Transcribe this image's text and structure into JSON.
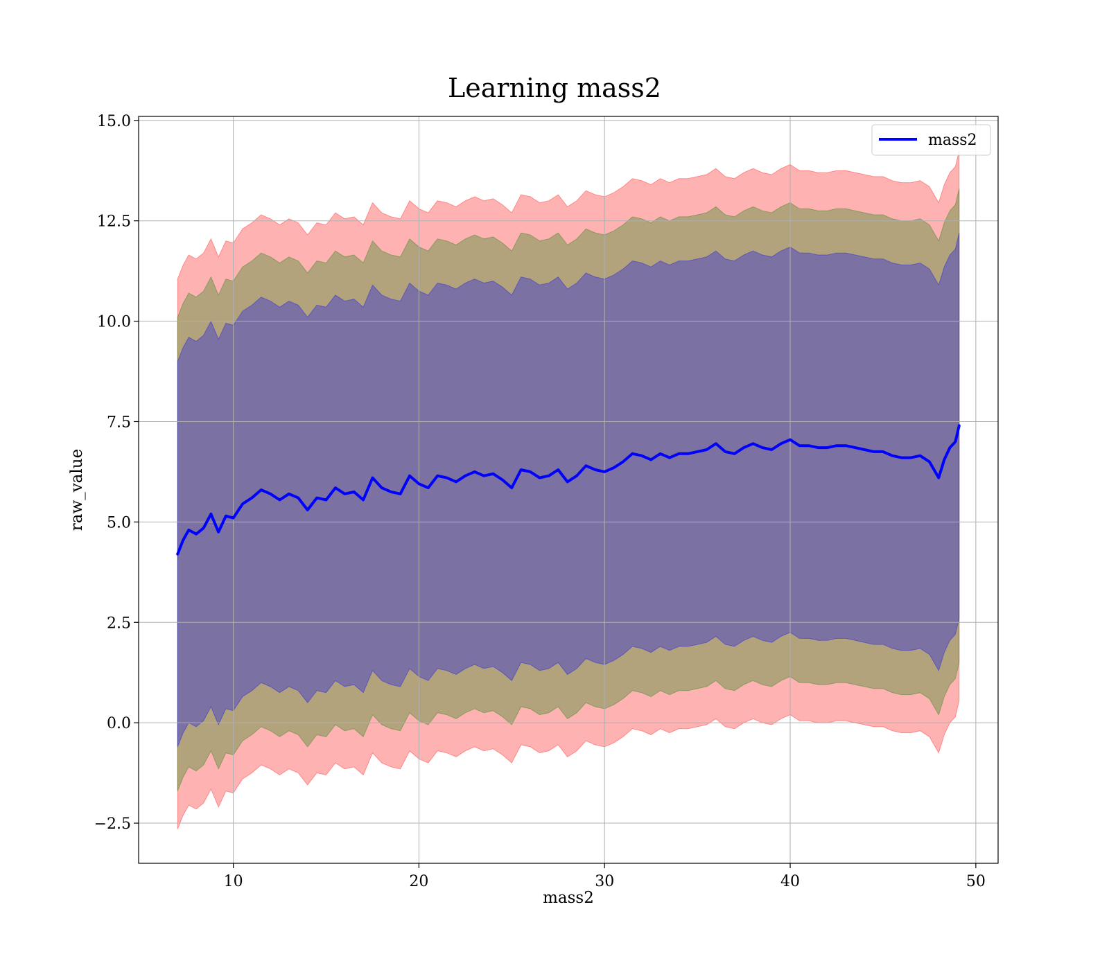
{
  "chart_data": {
    "type": "area",
    "title": "Learning mass2",
    "xlabel": "mass2",
    "ylabel": "raw_value",
    "xlim": [
      4.9,
      51.2
    ],
    "ylim": [
      -3.5,
      15.1
    ],
    "xticks": [
      10,
      20,
      30,
      40,
      50
    ],
    "yticks": [
      -2.5,
      0.0,
      2.5,
      5.0,
      7.5,
      10.0,
      12.5,
      15.0
    ],
    "ytick_labels": [
      "−2.5",
      "0.0",
      "2.5",
      "5.0",
      "7.5",
      "10.0",
      "12.5",
      "15.0"
    ],
    "grid": true,
    "legend": {
      "position": "top-right",
      "entries": [
        "mass2"
      ]
    },
    "bands": [
      {
        "color": "#ff0000",
        "opacity": 0.3,
        "offset": 6.85
      },
      {
        "color": "#008000",
        "opacity": 0.3,
        "offset": 5.9
      },
      {
        "color": "#0000ff",
        "opacity": 0.3,
        "offset": 4.8
      }
    ],
    "series": [
      {
        "name": "mass2",
        "color": "#0000ff",
        "x": [
          7.0,
          7.3,
          7.6,
          8.0,
          8.4,
          8.8,
          9.2,
          9.6,
          10.0,
          10.5,
          11.0,
          11.5,
          12.0,
          12.5,
          13.0,
          13.5,
          14.0,
          14.5,
          15.0,
          15.5,
          16.0,
          16.5,
          17.0,
          17.5,
          18.0,
          18.5,
          19.0,
          19.5,
          20.0,
          20.5,
          21.0,
          21.5,
          22.0,
          22.5,
          23.0,
          23.5,
          24.0,
          24.5,
          25.0,
          25.5,
          26.0,
          26.5,
          27.0,
          27.5,
          28.0,
          28.5,
          29.0,
          29.5,
          30.0,
          30.5,
          31.0,
          31.5,
          32.0,
          32.5,
          33.0,
          33.5,
          34.0,
          34.5,
          35.0,
          35.5,
          36.0,
          36.5,
          37.0,
          37.5,
          38.0,
          38.5,
          39.0,
          39.5,
          40.0,
          40.5,
          41.0,
          41.5,
          42.0,
          42.5,
          43.0,
          43.5,
          44.0,
          44.5,
          45.0,
          45.5,
          46.0,
          46.5,
          47.0,
          47.5,
          48.0,
          48.3,
          48.6,
          48.9,
          49.1
        ],
        "y": [
          4.2,
          4.55,
          4.8,
          4.7,
          4.85,
          5.2,
          4.75,
          5.15,
          5.1,
          5.45,
          5.6,
          5.8,
          5.7,
          5.55,
          5.7,
          5.6,
          5.3,
          5.6,
          5.55,
          5.85,
          5.7,
          5.75,
          5.55,
          6.1,
          5.85,
          5.75,
          5.7,
          6.15,
          5.95,
          5.85,
          6.15,
          6.1,
          6.0,
          6.15,
          6.25,
          6.15,
          6.2,
          6.05,
          5.85,
          6.3,
          6.25,
          6.1,
          6.15,
          6.3,
          6.0,
          6.15,
          6.4,
          6.3,
          6.25,
          6.35,
          6.5,
          6.7,
          6.65,
          6.55,
          6.7,
          6.6,
          6.7,
          6.7,
          6.75,
          6.8,
          6.95,
          6.75,
          6.7,
          6.85,
          6.95,
          6.85,
          6.8,
          6.95,
          7.05,
          6.9,
          6.9,
          6.85,
          6.85,
          6.9,
          6.9,
          6.85,
          6.8,
          6.75,
          6.75,
          6.65,
          6.6,
          6.6,
          6.65,
          6.5,
          6.1,
          6.55,
          6.85,
          7.0,
          7.4
        ]
      }
    ]
  }
}
